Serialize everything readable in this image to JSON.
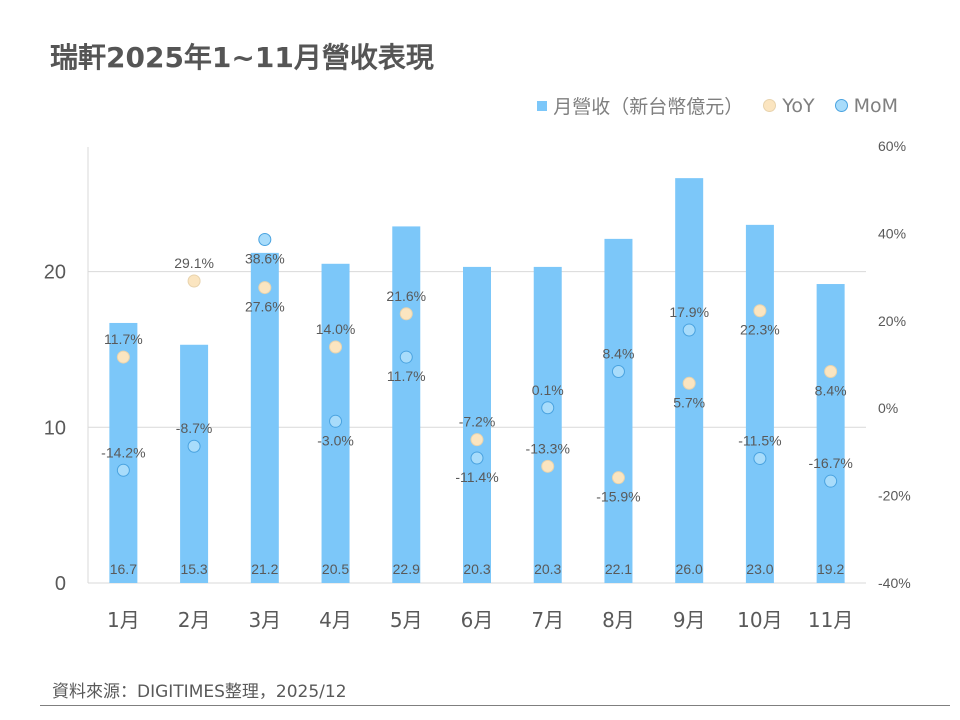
{
  "chart_data": {
    "type": "bar",
    "title": "瑞軒2025年1~11月營收表現",
    "categories": [
      "1月",
      "2月",
      "3月",
      "4月",
      "5月",
      "6月",
      "7月",
      "8月",
      "9月",
      "10月",
      "11月"
    ],
    "series": [
      {
        "name": "月營收（新台幣億元）",
        "type": "bar",
        "axis": "left",
        "color": "#7cc7f9",
        "values": [
          16.7,
          15.3,
          21.2,
          20.5,
          22.9,
          20.3,
          20.3,
          22.1,
          26.0,
          23.0,
          19.2
        ],
        "labels": [
          "16.7",
          "15.3",
          "21.2",
          "20.5",
          "22.9",
          "20.3",
          "20.3",
          "22.1",
          "26.0",
          "23.0",
          "19.2"
        ]
      },
      {
        "name": "YoY",
        "type": "scatter",
        "axis": "right",
        "color": "#fbe5c0",
        "values": [
          11.7,
          29.1,
          27.6,
          14.0,
          21.6,
          -7.2,
          -13.3,
          -15.9,
          5.7,
          22.3,
          8.4
        ],
        "labels": [
          "11.7%",
          "29.1%",
          "27.6%",
          "14.0%",
          "21.6%",
          "-7.2%",
          "-13.3%",
          "-15.9%",
          "5.7%",
          "22.3%",
          "8.4%"
        ]
      },
      {
        "name": "MoM",
        "type": "scatter",
        "axis": "right",
        "color": "#a8dcfb",
        "values": [
          -14.2,
          -8.7,
          38.6,
          -3.0,
          11.7,
          -11.4,
          0.1,
          8.4,
          17.9,
          -11.5,
          -16.7
        ],
        "labels": [
          "-14.2%",
          "-8.7%",
          "38.6%",
          "-3.0%",
          "11.7%",
          "-11.4%",
          "0.1%",
          "8.4%",
          "17.9%",
          "-11.5%",
          "-16.7%"
        ]
      }
    ],
    "left_axis": {
      "ylim": [
        0,
        28
      ],
      "ticks": [
        "0",
        "10",
        "20"
      ],
      "tick_values": [
        0,
        10,
        20
      ]
    },
    "right_axis": {
      "ylim": [
        -40,
        60
      ],
      "ticks": [
        "-40%",
        "-20%",
        "0%",
        "20%",
        "40%",
        "60%"
      ],
      "tick_values": [
        -40,
        -20,
        0,
        20,
        40,
        60
      ]
    },
    "grid": true,
    "legend": "top-right"
  },
  "legend": {
    "bar": "月營收（新台幣億元）",
    "yoy": "YoY",
    "mom": "MoM"
  },
  "source": "資料來源：DIGITIMES整理，2025/12"
}
